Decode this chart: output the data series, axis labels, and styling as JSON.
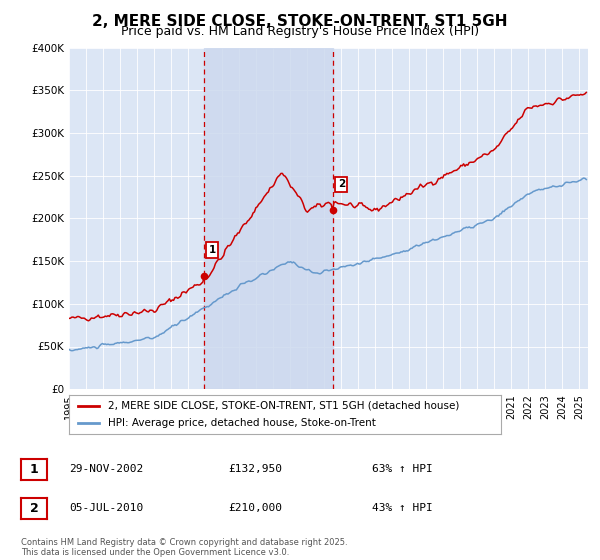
{
  "title": "2, MERE SIDE CLOSE, STOKE-ON-TRENT, ST1 5GH",
  "subtitle": "Price paid vs. HM Land Registry's House Price Index (HPI)",
  "background_color": "#ffffff",
  "plot_bg_color": "#dce6f5",
  "ylabel_values": [
    "£0",
    "£50K",
    "£100K",
    "£150K",
    "£200K",
    "£250K",
    "£300K",
    "£350K",
    "£400K"
  ],
  "ylim": [
    0,
    400000
  ],
  "xlim_start": 1995.0,
  "xlim_end": 2025.5,
  "xtick_years": [
    1995,
    1996,
    1997,
    1998,
    1999,
    2000,
    2001,
    2002,
    2003,
    2004,
    2005,
    2006,
    2007,
    2008,
    2009,
    2010,
    2011,
    2012,
    2013,
    2014,
    2015,
    2016,
    2017,
    2018,
    2019,
    2020,
    2021,
    2022,
    2023,
    2024,
    2025
  ],
  "purchase1_date": 2002.91,
  "purchase1_price": 132950,
  "purchase1_label": "1",
  "purchase2_date": 2010.5,
  "purchase2_price": 210000,
  "purchase2_label": "2",
  "vline_color": "#cc0000",
  "vline_style": "--",
  "vband_color": "#cdd9ee",
  "red_line_color": "#cc0000",
  "blue_line_color": "#6699cc",
  "legend_entry1": "2, MERE SIDE CLOSE, STOKE-ON-TRENT, ST1 5GH (detached house)",
  "legend_entry2": "HPI: Average price, detached house, Stoke-on-Trent",
  "table_rows": [
    {
      "num": "1",
      "date": "29-NOV-2002",
      "price": "£132,950",
      "pct": "63% ↑ HPI"
    },
    {
      "num": "2",
      "date": "05-JUL-2010",
      "price": "£210,000",
      "pct": "43% ↑ HPI"
    }
  ],
  "footer": "Contains HM Land Registry data © Crown copyright and database right 2025.\nThis data is licensed under the Open Government Licence v3.0.",
  "title_fontsize": 11,
  "subtitle_fontsize": 9
}
